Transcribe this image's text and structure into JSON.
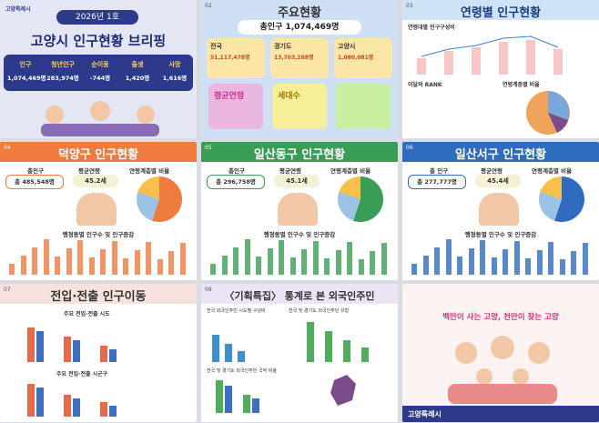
{
  "brief": {
    "org": "고양특례시",
    "issue": "2026년 1호",
    "title": "고양시 인구현황 브리핑",
    "stats": [
      {
        "label": "인구",
        "value": "1,074,469명"
      },
      {
        "label": "청년인구",
        "value": "283,974명"
      },
      {
        "label": "순이동",
        "value": "-744명"
      },
      {
        "label": "출생",
        "value": "1,420명"
      },
      {
        "label": "사망",
        "value": "1,616명"
      }
    ]
  },
  "main": {
    "num": "02",
    "title": "주요현황",
    "total": "총인구 1,074,469명",
    "boxes": [
      {
        "label": "전국",
        "value": "51,117,478명"
      },
      {
        "label": "경기도",
        "value": "13,703,288명"
      },
      {
        "label": "고양시",
        "value": "1,080,081명"
      }
    ],
    "notes": [
      "평균연령",
      "세대수"
    ]
  },
  "age": {
    "num": "03",
    "title": "연령별 인구현황",
    "sub1": "연령대별 인구구성비",
    "sub2": "이달의 RANK",
    "sub3": "연령계층별 비율"
  },
  "districts": [
    {
      "num": "04",
      "title": "덕양구 인구현황",
      "total_label": "총인구",
      "total": "총 485,548명",
      "age_label": "평균연령",
      "age": "45.2세",
      "ratio_label": "연령계층별 비율",
      "chart_label": "행정동별 인구수 및 인구증감"
    },
    {
      "num": "05",
      "title": "일산동구 인구현황",
      "total_label": "총인구",
      "total": "총 296,758명",
      "age_label": "평균연령",
      "age": "45.1세",
      "ratio_label": "연령계층별 비율",
      "chart_label": "행정동별 인구수 및 인구증감"
    },
    {
      "num": "06",
      "title": "일산서구 인구현황",
      "total_label": "총 인구",
      "total": "총 277,777명",
      "age_label": "평균연령",
      "age": "45.4세",
      "ratio_label": "연령계층별 비율",
      "chart_label": "행정동별 인구수 및 인구증감"
    }
  ],
  "move": {
    "num": "07",
    "title": "전입·전출 인구이동",
    "sub1": "주요 전입·전출 시도",
    "sub2": "주요 전입·전출 시군구"
  },
  "foreign": {
    "num": "08",
    "title": "〈기획특집〉 통계로 본 외국인주민",
    "sub1": "전국 외국인주민 시도별 구성비",
    "sub2": "전국 및 경기도 외국인주민 유형",
    "sub3": "전국 및 경기도 외국인주민 국적 비율"
  },
  "closing": {
    "slogan": "백만이 사는 고양, 천만이 찾는 고양",
    "org": "고양특례시"
  }
}
